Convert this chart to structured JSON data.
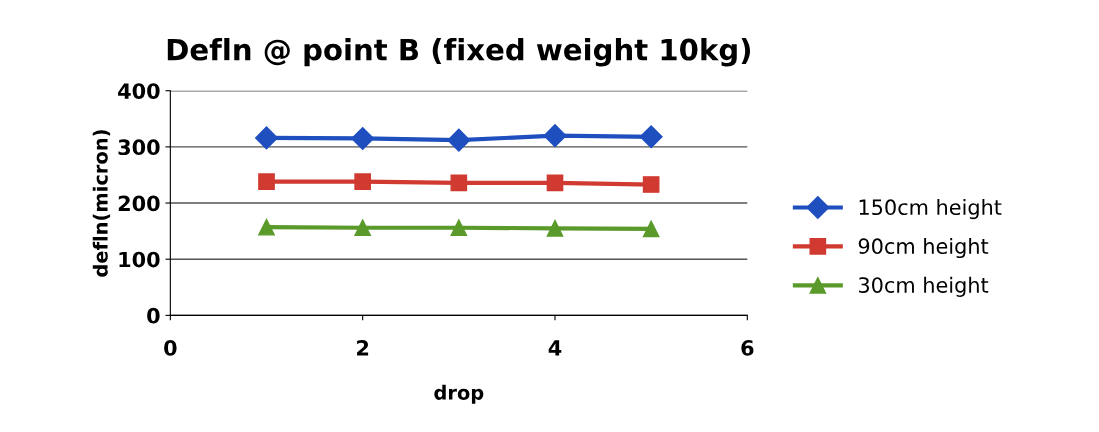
{
  "chart_data": {
    "type": "line",
    "title": "Defln @ point B (fixed weight 10kg)",
    "xlabel": "drop",
    "ylabel": "defln(micron)",
    "x": [
      1,
      2,
      3,
      4,
      5
    ],
    "series": [
      {
        "name": "150cm height",
        "color": "#1f4fbf",
        "marker": "diamond",
        "values": [
          316,
          315,
          312,
          320,
          318
        ]
      },
      {
        "name": "90cm height",
        "color": "#d03a30",
        "marker": "square",
        "values": [
          238,
          238,
          236,
          236,
          233
        ]
      },
      {
        "name": "30cm height",
        "color": "#5a9a2a",
        "marker": "triangle",
        "values": [
          157,
          156,
          156,
          155,
          154
        ]
      }
    ],
    "xlim": [
      0,
      6
    ],
    "xticks": [
      0,
      2,
      4,
      6
    ],
    "ylim": [
      0,
      400
    ],
    "yticks": [
      0,
      100,
      200,
      300,
      400
    ],
    "grid": "y",
    "legend": "right",
    "line_style": "solid"
  }
}
